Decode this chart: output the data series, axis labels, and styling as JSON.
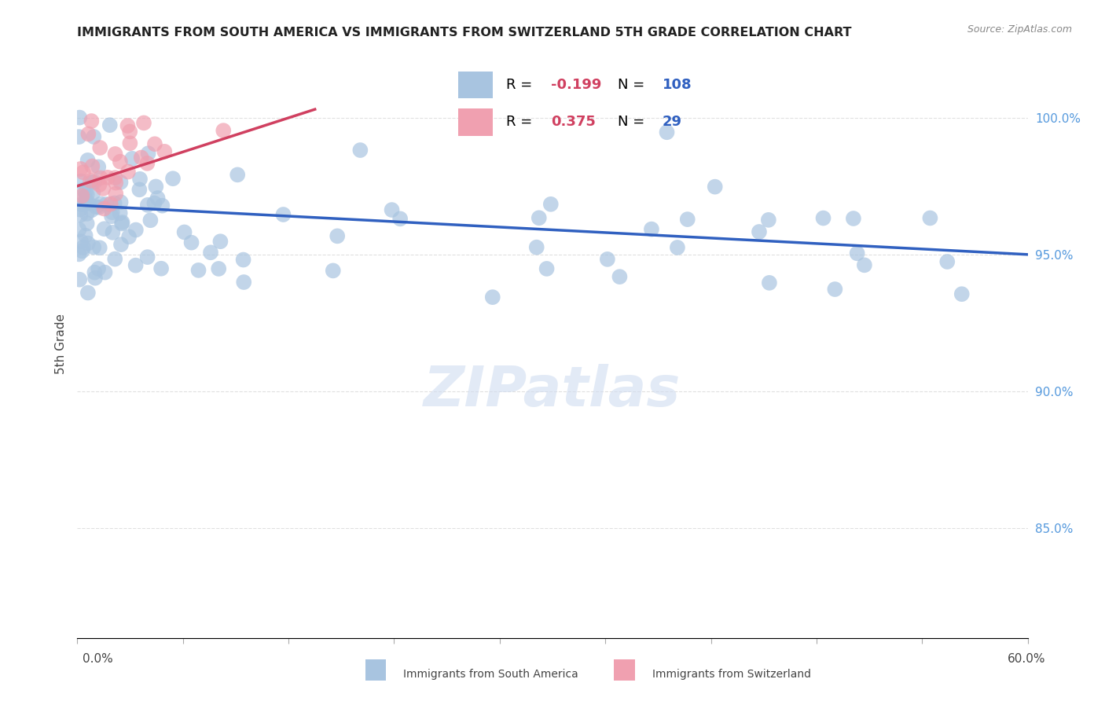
{
  "title": "IMMIGRANTS FROM SOUTH AMERICA VS IMMIGRANTS FROM SWITZERLAND 5TH GRADE CORRELATION CHART",
  "source": "Source: ZipAtlas.com",
  "ylabel": "5th Grade",
  "xlim": [
    0.0,
    60.0
  ],
  "ylim": [
    81.0,
    102.5
  ],
  "yticks_right": [
    85.0,
    90.0,
    95.0,
    100.0
  ],
  "blue_R": "-0.199",
  "blue_N": "108",
  "pink_R": "0.375",
  "pink_N": "29",
  "blue_color": "#a8c4e0",
  "pink_color": "#f0a0b0",
  "blue_line_color": "#3060c0",
  "pink_line_color": "#d04060",
  "blue_trend_x": [
    0,
    60
  ],
  "blue_trend_y": [
    96.8,
    95.0
  ],
  "pink_trend_x": [
    0,
    15
  ],
  "pink_trend_y": [
    97.5,
    100.3
  ],
  "watermark_text": "ZIPatlas",
  "watermark_color": "#d0ddf0",
  "background_color": "#ffffff",
  "grid_color": "#e0e0e0",
  "title_color": "#222222",
  "source_color": "#888888",
  "ylabel_color": "#444444",
  "axis_label_color": "#444444",
  "right_tick_color": "#5599dd",
  "legend_label_blue": "Immigrants from South America",
  "legend_label_pink": "Immigrants from Switzerland",
  "corr_R_color": "#d04060",
  "corr_N_color": "#3060c0"
}
